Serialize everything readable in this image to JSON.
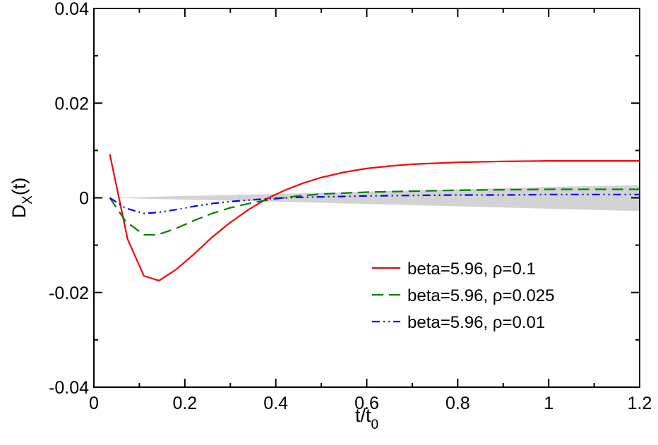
{
  "chart_data": {
    "type": "line",
    "title": "",
    "xlabel": {
      "main": "t/t",
      "sub": "0"
    },
    "ylabel": {
      "main": "D",
      "sub": "X",
      "suffix": "(t)"
    },
    "xlim": [
      0,
      1.2
    ],
    "ylim": [
      -0.04,
      0.04
    ],
    "xticks": [
      0,
      0.2,
      0.4,
      0.6,
      0.8,
      1,
      1.2
    ],
    "xtick_labels": [
      "0",
      "0.2",
      "0.4",
      "0.6",
      "0.8",
      "1",
      "1.2"
    ],
    "yticks": [
      -0.04,
      -0.02,
      0,
      0.02,
      0.04
    ],
    "ytick_labels": [
      "-0.04",
      "-0.02",
      "0",
      "0.02",
      "0.04"
    ],
    "grid": false,
    "legend_position": "lower-right",
    "band": {
      "color": "#d3d3d3",
      "x": [
        0.035,
        0.2,
        0.4,
        0.6,
        0.8,
        1.0,
        1.2
      ],
      "upper": [
        0.0,
        0.0004,
        0.0008,
        0.0013,
        0.0018,
        0.0023,
        0.0027
      ],
      "lower": [
        0.0,
        -0.0004,
        -0.0008,
        -0.0013,
        -0.0018,
        -0.0023,
        -0.0028
      ]
    },
    "series": [
      {
        "name": "beta=5.96, ρ=0.1",
        "color": "#ff0000",
        "dash": "solid",
        "x": [
          0.035,
          0.054,
          0.074,
          0.11,
          0.143,
          0.18,
          0.22,
          0.26,
          0.3,
          0.34,
          0.38,
          0.42,
          0.46,
          0.5,
          0.55,
          0.6,
          0.65,
          0.7,
          0.8,
          0.9,
          1.0,
          1.1,
          1.2
        ],
        "y": [
          0.0092,
          0.0005,
          -0.0087,
          -0.0165,
          -0.0175,
          -0.0152,
          -0.0119,
          -0.0083,
          -0.0052,
          -0.0025,
          -0.0002,
          0.0016,
          0.0031,
          0.0043,
          0.0054,
          0.0062,
          0.0067,
          0.0071,
          0.0075,
          0.0077,
          0.0078,
          0.0078,
          0.0078
        ]
      },
      {
        "name": "beta=5.96, ρ=0.025",
        "color": "#008000",
        "dash": "long-dash",
        "x": [
          0.035,
          0.07,
          0.11,
          0.14,
          0.18,
          0.22,
          0.26,
          0.3,
          0.35,
          0.4,
          0.45,
          0.5,
          0.6,
          0.7,
          0.8,
          0.9,
          1.0,
          1.1,
          1.2
        ],
        "y": [
          0.0,
          -0.005,
          -0.0078,
          -0.0078,
          -0.0065,
          -0.0048,
          -0.0033,
          -0.0021,
          -0.001,
          -0.0002,
          0.0004,
          0.0008,
          0.0012,
          0.0014,
          0.0016,
          0.0017,
          0.0018,
          0.0018,
          0.0018
        ]
      },
      {
        "name": "beta=5.96, ρ=0.01",
        "color": "#0000ff",
        "dash": "dash-dot-dot",
        "x": [
          0.035,
          0.07,
          0.11,
          0.14,
          0.18,
          0.22,
          0.26,
          0.3,
          0.35,
          0.4,
          0.45,
          0.5,
          0.6,
          0.7,
          0.8,
          0.9,
          1.0,
          1.1,
          1.2
        ],
        "y": [
          0.0,
          -0.0022,
          -0.0033,
          -0.0031,
          -0.0025,
          -0.0018,
          -0.0012,
          -0.0008,
          -0.0004,
          -0.0001,
          0.0001,
          0.0002,
          0.0004,
          0.0005,
          0.0006,
          0.0006,
          0.0007,
          0.0007,
          0.0007
        ]
      }
    ]
  }
}
